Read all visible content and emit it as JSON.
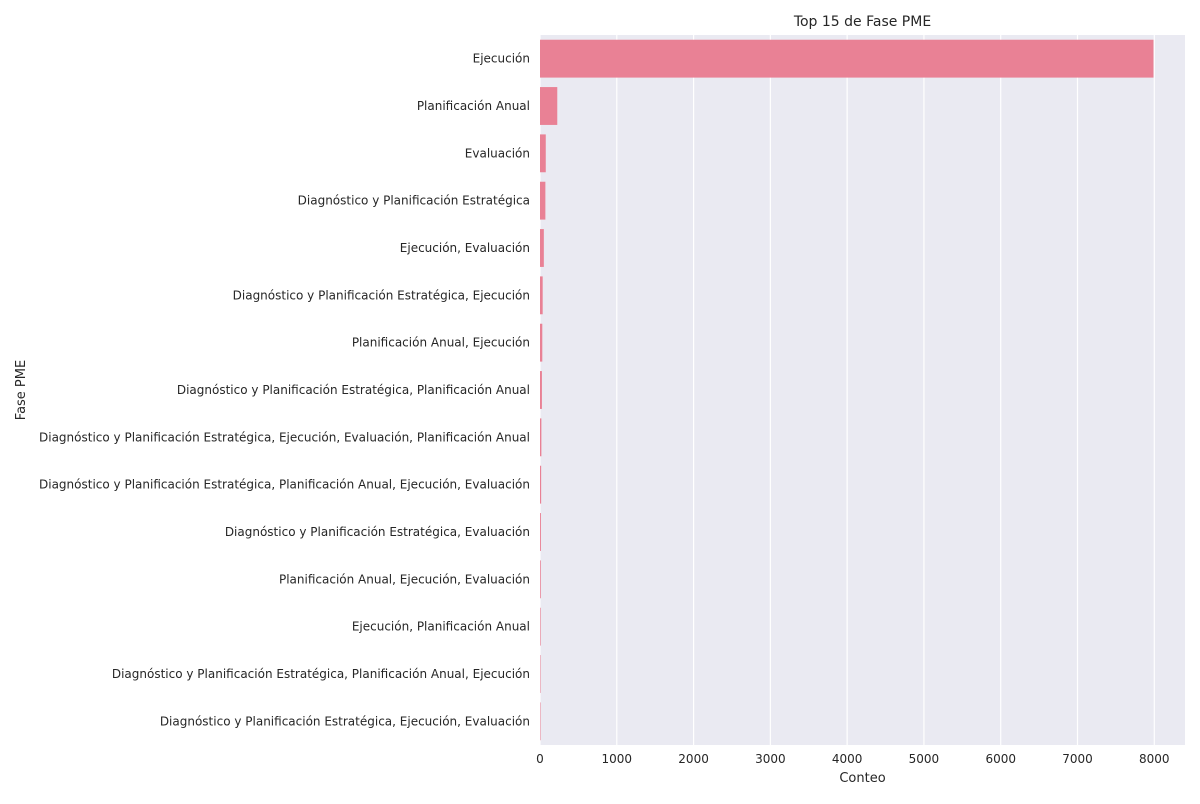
{
  "chart_data": {
    "type": "bar",
    "orientation": "horizontal",
    "title": "Top 15 de Fase PME",
    "xlabel": "Conteo",
    "ylabel": "Fase PME",
    "xlim": [
      0,
      8400
    ],
    "xticks": [
      0,
      1000,
      2000,
      3000,
      4000,
      5000,
      6000,
      7000,
      8000
    ],
    "grid": true,
    "bar_color": "#e98195",
    "background_color": "#eaeaf2",
    "categories": [
      "Ejecución",
      "Planificación Anual",
      "Evaluación",
      "Diagnóstico y Planificación Estratégica",
      "Ejecución, Evaluación",
      "Diagnóstico y Planificación Estratégica, Ejecución",
      "Planificación Anual, Ejecución",
      "Diagnóstico y Planificación Estratégica, Planificación Anual",
      "Diagnóstico y Planificación Estratégica, Ejecución, Evaluación, Planificación Anual",
      "Diagnóstico y Planificación Estratégica, Planificación Anual, Ejecución, Evaluación",
      "Diagnóstico y Planificación Estratégica, Evaluación",
      "Planificación Anual, Ejecución, Evaluación",
      "Ejecución, Planificación Anual",
      "Diagnóstico y Planificación Estratégica, Planificación Anual, Ejecución",
      "Diagnóstico y Planificación Estratégica, Ejecución, Evaluación"
    ],
    "values": [
      7990,
      225,
      75,
      70,
      50,
      35,
      30,
      25,
      18,
      15,
      12,
      10,
      8,
      6,
      5
    ]
  }
}
